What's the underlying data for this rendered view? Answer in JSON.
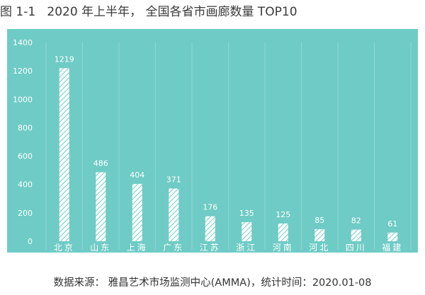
{
  "header": {
    "figure_label": "图 1-1",
    "title": "2020 年上半年， 全国各省市画廊数量 TOP10"
  },
  "source": {
    "label": "数据来源：",
    "text": "雅昌艺术市场监测中心(AMMA)，统计时间：2020.01-08"
  },
  "colors": {
    "panel_background": "#6fcbc5",
    "bar_fill": "#ffffff",
    "bar_hatch": "#6fcbc5",
    "text": "#ffffff",
    "grid": "#8fd7d2"
  },
  "chart_data": {
    "type": "bar",
    "categories": [
      "北京",
      "山东",
      "上海",
      "广东",
      "江苏",
      "浙江",
      "河南",
      "河北",
      "四川",
      "福建"
    ],
    "values": [
      1219,
      486,
      404,
      371,
      176,
      135,
      125,
      85,
      82,
      61
    ],
    "ylim": [
      0,
      1400
    ],
    "yticks": [
      0,
      200,
      400,
      600,
      800,
      1000,
      1200,
      1400
    ],
    "grid": "vertical separators between categories",
    "data_labels": true,
    "bar_pattern": "diagonal hatch"
  }
}
